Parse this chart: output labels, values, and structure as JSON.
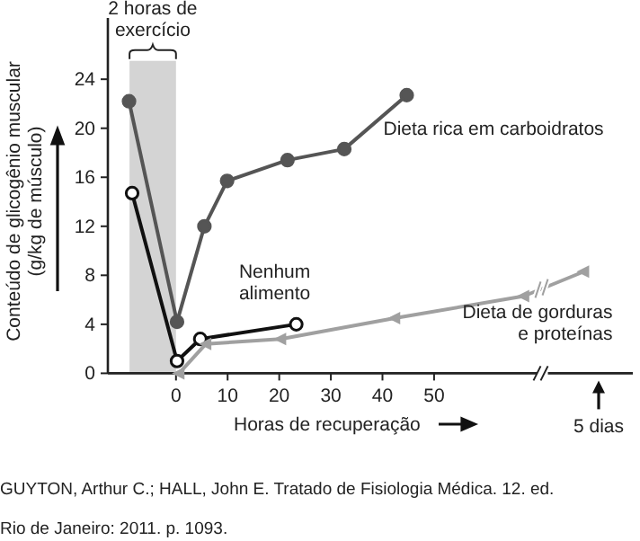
{
  "chart_data": {
    "type": "line",
    "ylabel": "Conteúdo de glicogênio muscular\n(g/kg de músculo)",
    "xlabel": "Horas de recuperação",
    "xlim": [
      -13.2,
      88.5
    ],
    "xticks": [
      0,
      10,
      20,
      30,
      40,
      50
    ],
    "ylim": [
      0,
      29
    ],
    "yticks": [
      0,
      4,
      8,
      12,
      16,
      20,
      24
    ],
    "bands": [
      {
        "axis": "x",
        "from": -9,
        "to": 0,
        "label": "2 horas de exercício",
        "color": "#d4d4d4"
      }
    ],
    "series": [
      {
        "name": "Dieta rica em carboidratos",
        "color": "#555555",
        "marker": "circle",
        "x": [
          -9.1,
          0.2,
          5.5,
          9.9,
          21.6,
          32.6,
          44.7
        ],
        "values": [
          22.2,
          4.2,
          12.0,
          15.7,
          17.4,
          18.3,
          22.7
        ]
      },
      {
        "name": "Nenhum alimento",
        "color": "#111111",
        "marker": "circle",
        "x": [
          -8.5,
          0.2,
          4.7,
          23.3
        ],
        "values": [
          14.7,
          1.0,
          2.8,
          4.0
        ]
      },
      {
        "name": "Dieta de gorduras e proteínas",
        "color": "#a0a0a0",
        "marker": "triangle",
        "x": [
          0.6,
          5.8,
          20.3,
          42.4,
          67.4,
          79
        ],
        "values": [
          0,
          2.4,
          2.8,
          4.5,
          6.3,
          8.3
        ]
      }
    ],
    "annotations": [
      "5 dias",
      "GUYTON, Arthur C.; HALL, John E. Tratado de Fisiologia Médica. 12. ed.",
      "Rio de Janeiro: 2011. p. 1093."
    ]
  }
}
